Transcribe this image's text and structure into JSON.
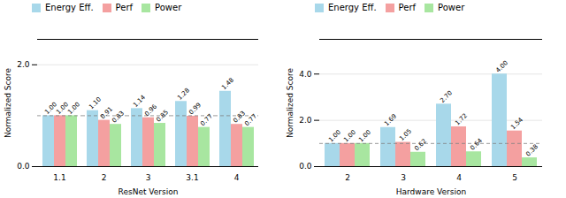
{
  "chart_data": [
    {
      "type": "bar",
      "categories": [
        "1.1",
        "2",
        "3",
        "3.1",
        "4"
      ],
      "series": [
        {
          "name": "Energy Eff.",
          "color": "#a8d8ea",
          "values": [
            1.0,
            1.1,
            1.14,
            1.28,
            1.48
          ],
          "value_labels": [
            "1.00",
            "1.10",
            "1.14",
            "1.28",
            "1.48"
          ]
        },
        {
          "name": "Perf",
          "color": "#f4a0a0",
          "values": [
            1.0,
            0.91,
            0.96,
            0.99,
            0.83
          ],
          "value_labels": [
            "1.00",
            "0.91",
            "0.96",
            "0.99",
            "0.83"
          ]
        },
        {
          "name": "Power",
          "color": "#a8e6a0",
          "values": [
            1.0,
            0.83,
            0.85,
            0.77,
            0.77
          ],
          "value_labels": [
            "1.00",
            "0.83",
            "0.85",
            "0.77",
            "0.77"
          ]
        }
      ],
      "xlabel": "ResNet Version",
      "ylabel": "Normalized Score",
      "ylim": [
        0,
        2.5
      ],
      "yticks": [
        0,
        2
      ],
      "hline": 1.0,
      "grid": true,
      "legend": "upper left",
      "data_labels": true
    },
    {
      "type": "bar",
      "categories": [
        "2",
        "3",
        "4",
        "5"
      ],
      "series": [
        {
          "name": "Energy Eff.",
          "color": "#a8d8ea",
          "values": [
            1.0,
            1.69,
            2.7,
            4.0
          ],
          "value_labels": [
            "1.00",
            "1.69",
            "2.70",
            "4.00"
          ]
        },
        {
          "name": "Perf",
          "color": "#f4a0a0",
          "values": [
            1.0,
            1.05,
            1.72,
            1.54
          ],
          "value_labels": [
            "1.00",
            "1.05",
            "1.72",
            "1.54"
          ]
        },
        {
          "name": "Power",
          "color": "#a8e6a0",
          "values": [
            1.0,
            0.62,
            0.64,
            0.38
          ],
          "value_labels": [
            "1.00",
            "0.62",
            "0.64",
            "0.38"
          ]
        }
      ],
      "xlabel": "Hardware Version",
      "ylabel": "Normalized Score",
      "ylim": [
        0,
        5.5
      ],
      "yticks": [
        0,
        2,
        4
      ],
      "hline": 1.0,
      "grid": true,
      "legend": "upper left",
      "data_labels": true
    }
  ]
}
